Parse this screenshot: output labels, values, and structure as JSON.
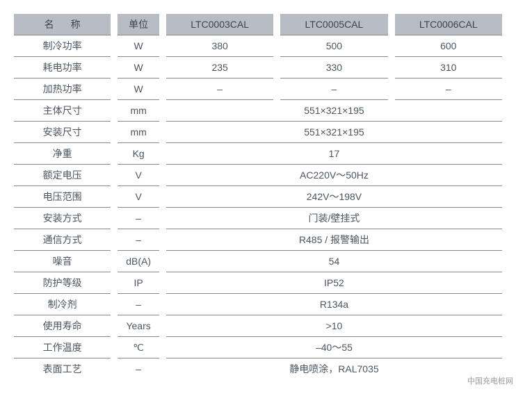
{
  "colors": {
    "header_bg": "#b8bdc4",
    "text": "#4a5560",
    "border": "#888888",
    "bg": "#ffffff"
  },
  "header": {
    "name": "名称",
    "unit": "单位",
    "m1": "LTC0003CAL",
    "m2": "LTC0005CAL",
    "m3": "LTC0006CAL"
  },
  "rows": [
    {
      "name": "制冷功率",
      "unit": "W",
      "v": [
        "380",
        "500",
        "600"
      ],
      "span": 0
    },
    {
      "name": "耗电功率",
      "unit": "W",
      "v": [
        "235",
        "330",
        "310"
      ],
      "span": 0
    },
    {
      "name": "加热功率",
      "unit": "W",
      "v": [
        "–",
        "–",
        "–"
      ],
      "span": 0
    },
    {
      "name": "主体尺寸",
      "unit": "mm",
      "v": [
        "551×321×195"
      ],
      "span": 3
    },
    {
      "name": "安装尺寸",
      "unit": "mm",
      "v": [
        "551×321×195"
      ],
      "span": 3
    },
    {
      "name": "净重",
      "unit": "Kg",
      "v": [
        "17"
      ],
      "span": 3
    },
    {
      "name": "额定电压",
      "unit": "V",
      "v": [
        "AC220V～50Hz"
      ],
      "span": 3
    },
    {
      "name": "电压范围",
      "unit": "V",
      "v": [
        "242V～198V"
      ],
      "span": 3
    },
    {
      "name": "安装方式",
      "unit": "–",
      "v": [
        "门装/壁挂式"
      ],
      "span": 3
    },
    {
      "name": "通信方式",
      "unit": "–",
      "v": [
        "R485 / 报警输出"
      ],
      "span": 3
    },
    {
      "name": "噪音",
      "unit": "dB(A)",
      "v": [
        "54"
      ],
      "span": 3
    },
    {
      "name": "防护等级",
      "unit": "IP",
      "v": [
        "IP52"
      ],
      "span": 3
    },
    {
      "name": "制冷剂",
      "unit": "–",
      "v": [
        "R134a"
      ],
      "span": 3
    },
    {
      "name": "使用寿命",
      "unit": "Years",
      "v": [
        ">10"
      ],
      "span": 3
    },
    {
      "name": "工作温度",
      "unit": "℃",
      "v": [
        "–40～55"
      ],
      "span": 3
    },
    {
      "name": "表面工艺",
      "unit": "–",
      "v": [
        "静电喷涂，RAL7035"
      ],
      "span": 3
    }
  ],
  "watermark": "中国充电桩网"
}
